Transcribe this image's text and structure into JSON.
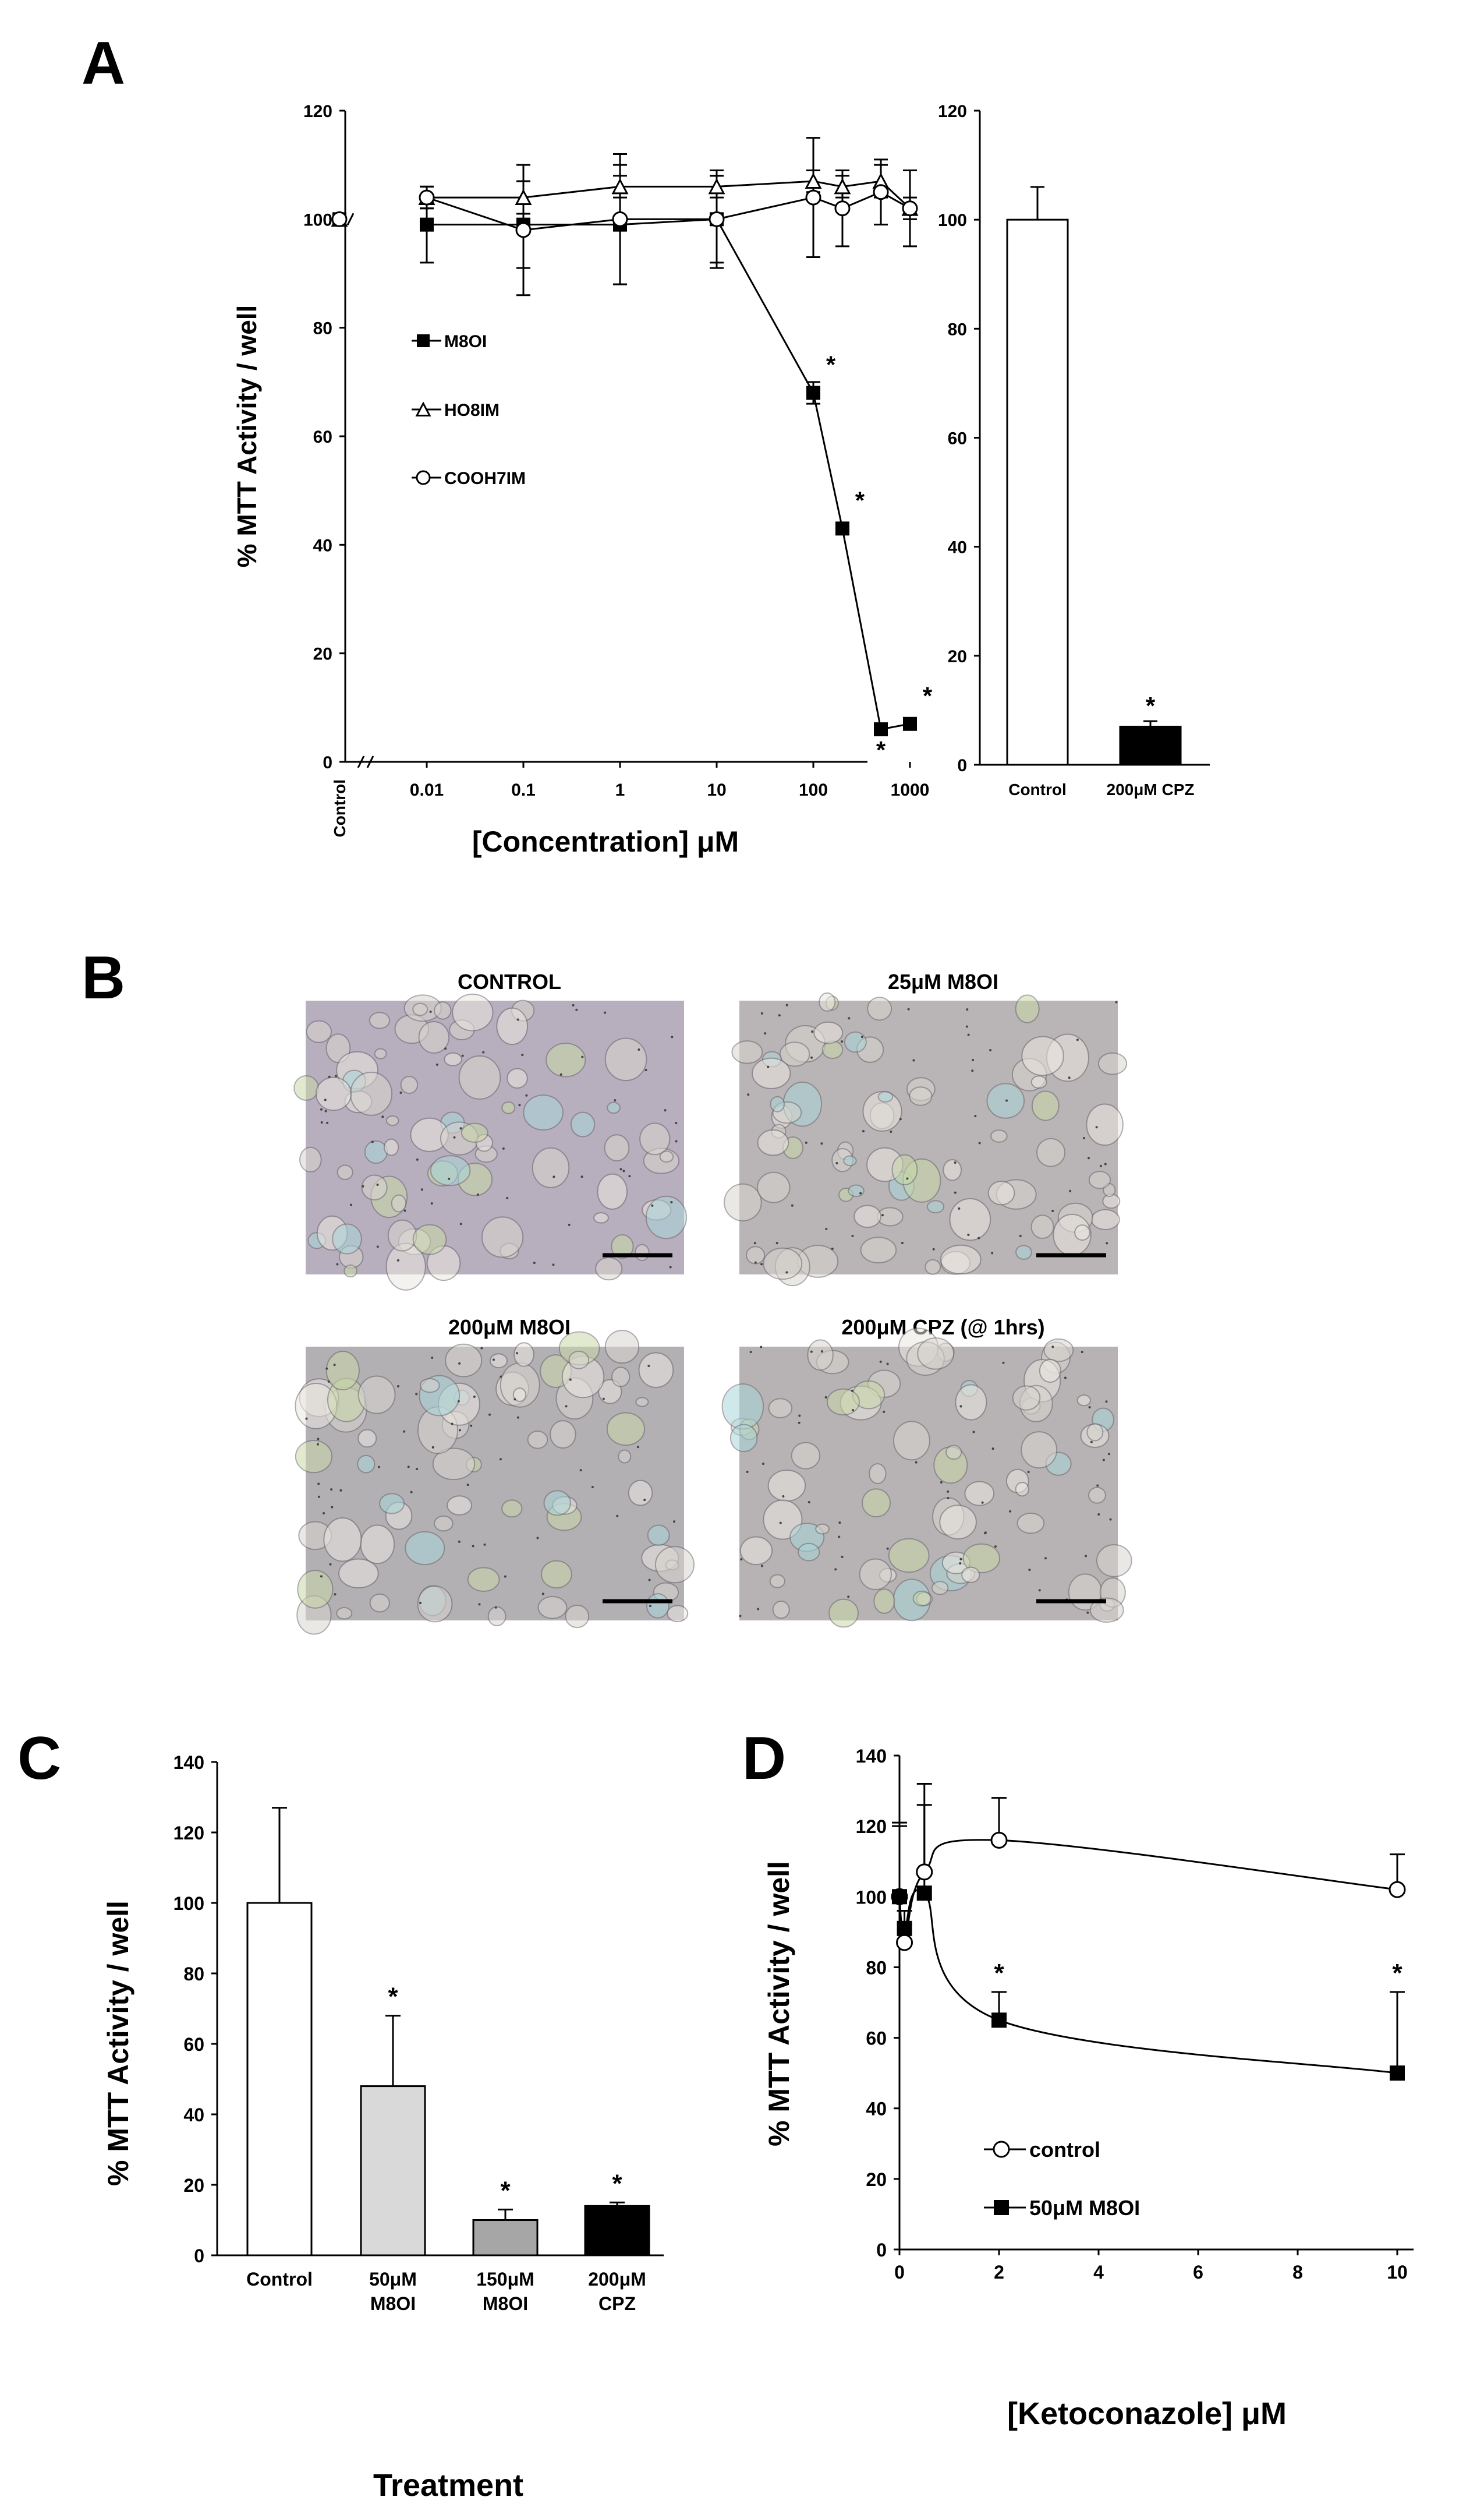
{
  "panels": {
    "a": {
      "letter": "A",
      "line_chart": {
        "type": "line",
        "ylabel": "% MTT Activity / well",
        "xlabel": "[Concentration] μM",
        "control_label": "Control",
        "x_scale": "log",
        "ylim": [
          0,
          120
        ],
        "yticks": [
          "0",
          "20",
          "40",
          "60",
          "80",
          "100",
          "120"
        ],
        "xticks": [
          "0.01",
          "0.1",
          "1",
          "10",
          "100",
          "1000"
        ],
        "legend_placement": "left-middle",
        "series": [
          {
            "name": "M8OI",
            "marker": "filled-square",
            "control": 100,
            "x": [
              0.01,
              0.1,
              1,
              10,
              100,
              200,
              500,
              1000
            ],
            "y": [
              99,
              99,
              99,
              100,
              68,
              43,
              6,
              7
            ],
            "err": [
              7,
              8,
              11,
              8,
              2,
              1,
              0,
              0
            ],
            "significant": [
              false,
              false,
              false,
              false,
              true,
              true,
              true,
              true
            ]
          },
          {
            "name": "HO8IM",
            "marker": "open-triangle",
            "control": 100,
            "x": [
              0.01,
              0.1,
              1,
              10,
              100,
              200,
              500,
              1000
            ],
            "y": [
              104,
              104,
              106,
              106,
              107,
              106,
              107,
              102
            ],
            "err": [
              2,
              3,
              2,
              2,
              2,
              2,
              3,
              2
            ],
            "significant": [
              false,
              false,
              false,
              false,
              false,
              false,
              false,
              false
            ]
          },
          {
            "name": "COOH7IM",
            "marker": "open-circle",
            "control": 100,
            "x": [
              0.01,
              0.1,
              1,
              10,
              100,
              200,
              500,
              1000
            ],
            "y": [
              104,
              98,
              100,
              100,
              104,
              102,
              105,
              102
            ],
            "err": [
              2,
              12,
              12,
              9,
              11,
              7,
              6,
              7
            ],
            "significant": [
              false,
              false,
              false,
              false,
              false,
              false,
              false,
              false
            ]
          }
        ]
      },
      "bar_chart": {
        "type": "bar",
        "ylim": [
          0,
          120
        ],
        "yticks": [
          "0",
          "20",
          "40",
          "60",
          "80",
          "100",
          "120"
        ],
        "categories": [
          "Control",
          "200μM CPZ"
        ],
        "values": [
          100,
          7
        ],
        "err": [
          6,
          1
        ],
        "colors": [
          "#ffffff",
          "#000000"
        ],
        "significant": [
          false,
          true
        ]
      }
    },
    "b": {
      "letter": "B",
      "images": [
        {
          "title": "CONTROL",
          "palette": "#b8afbe",
          "icon": "micrograph-image"
        },
        {
          "title": "25μM M8OI",
          "palette": "#b9b4b6",
          "icon": "micrograph-image"
        },
        {
          "title": "200μM M8OI",
          "palette": "#b3b0b4",
          "icon": "micrograph-image"
        },
        {
          "title": "200μM CPZ (@ 1hrs)",
          "palette": "#b7b3b5",
          "icon": "micrograph-image"
        }
      ]
    },
    "c": {
      "letter": "C",
      "chart": {
        "type": "bar",
        "ylabel": "% MTT Activity / well",
        "xlabel": "Treatment",
        "ylim": [
          0,
          140
        ],
        "yticks": [
          "0",
          "20",
          "40",
          "60",
          "80",
          "100",
          "120",
          "140"
        ],
        "categories": [
          [
            "Control"
          ],
          [
            "50μM",
            "M8OI"
          ],
          [
            "150μM",
            "M8OI"
          ],
          [
            "200μM",
            "CPZ"
          ]
        ],
        "values": [
          100,
          48,
          10,
          14
        ],
        "err": [
          27,
          20,
          3,
          1
        ],
        "colors": [
          "#ffffff",
          "#d9d9d9",
          "#a6a6a6",
          "#000000"
        ],
        "significant": [
          false,
          true,
          true,
          true
        ]
      }
    },
    "d": {
      "letter": "D",
      "chart": {
        "type": "line",
        "ylabel": "% MTT Activity / well",
        "xlabel": "[Ketoconazole] μM",
        "xlim": [
          0,
          10.3
        ],
        "ylim": [
          0,
          140
        ],
        "xticks": [
          "0",
          "2",
          "4",
          "6",
          "8",
          "10"
        ],
        "yticks": [
          "0",
          "20",
          "40",
          "60",
          "80",
          "100",
          "120",
          "140"
        ],
        "legend_placement": "bottom-left",
        "series": [
          {
            "name": "control",
            "marker": "open-circle",
            "x": [
              0,
              0.1,
              0.5,
              2,
              10
            ],
            "y": [
              100,
              87,
              107,
              116,
              102
            ],
            "err": [
              21,
              5,
              25,
              12,
              10
            ],
            "significant": [
              false,
              false,
              false,
              false,
              false
            ]
          },
          {
            "name": "50μM M8OI",
            "marker": "filled-square",
            "x": [
              0,
              0.1,
              0.5,
              2,
              10
            ],
            "y": [
              100,
              91,
              101,
              65,
              50
            ],
            "err": [
              20,
              5,
              25,
              8,
              23
            ],
            "significant": [
              false,
              false,
              false,
              true,
              true
            ]
          }
        ]
      }
    }
  },
  "significance_symbol": "*"
}
